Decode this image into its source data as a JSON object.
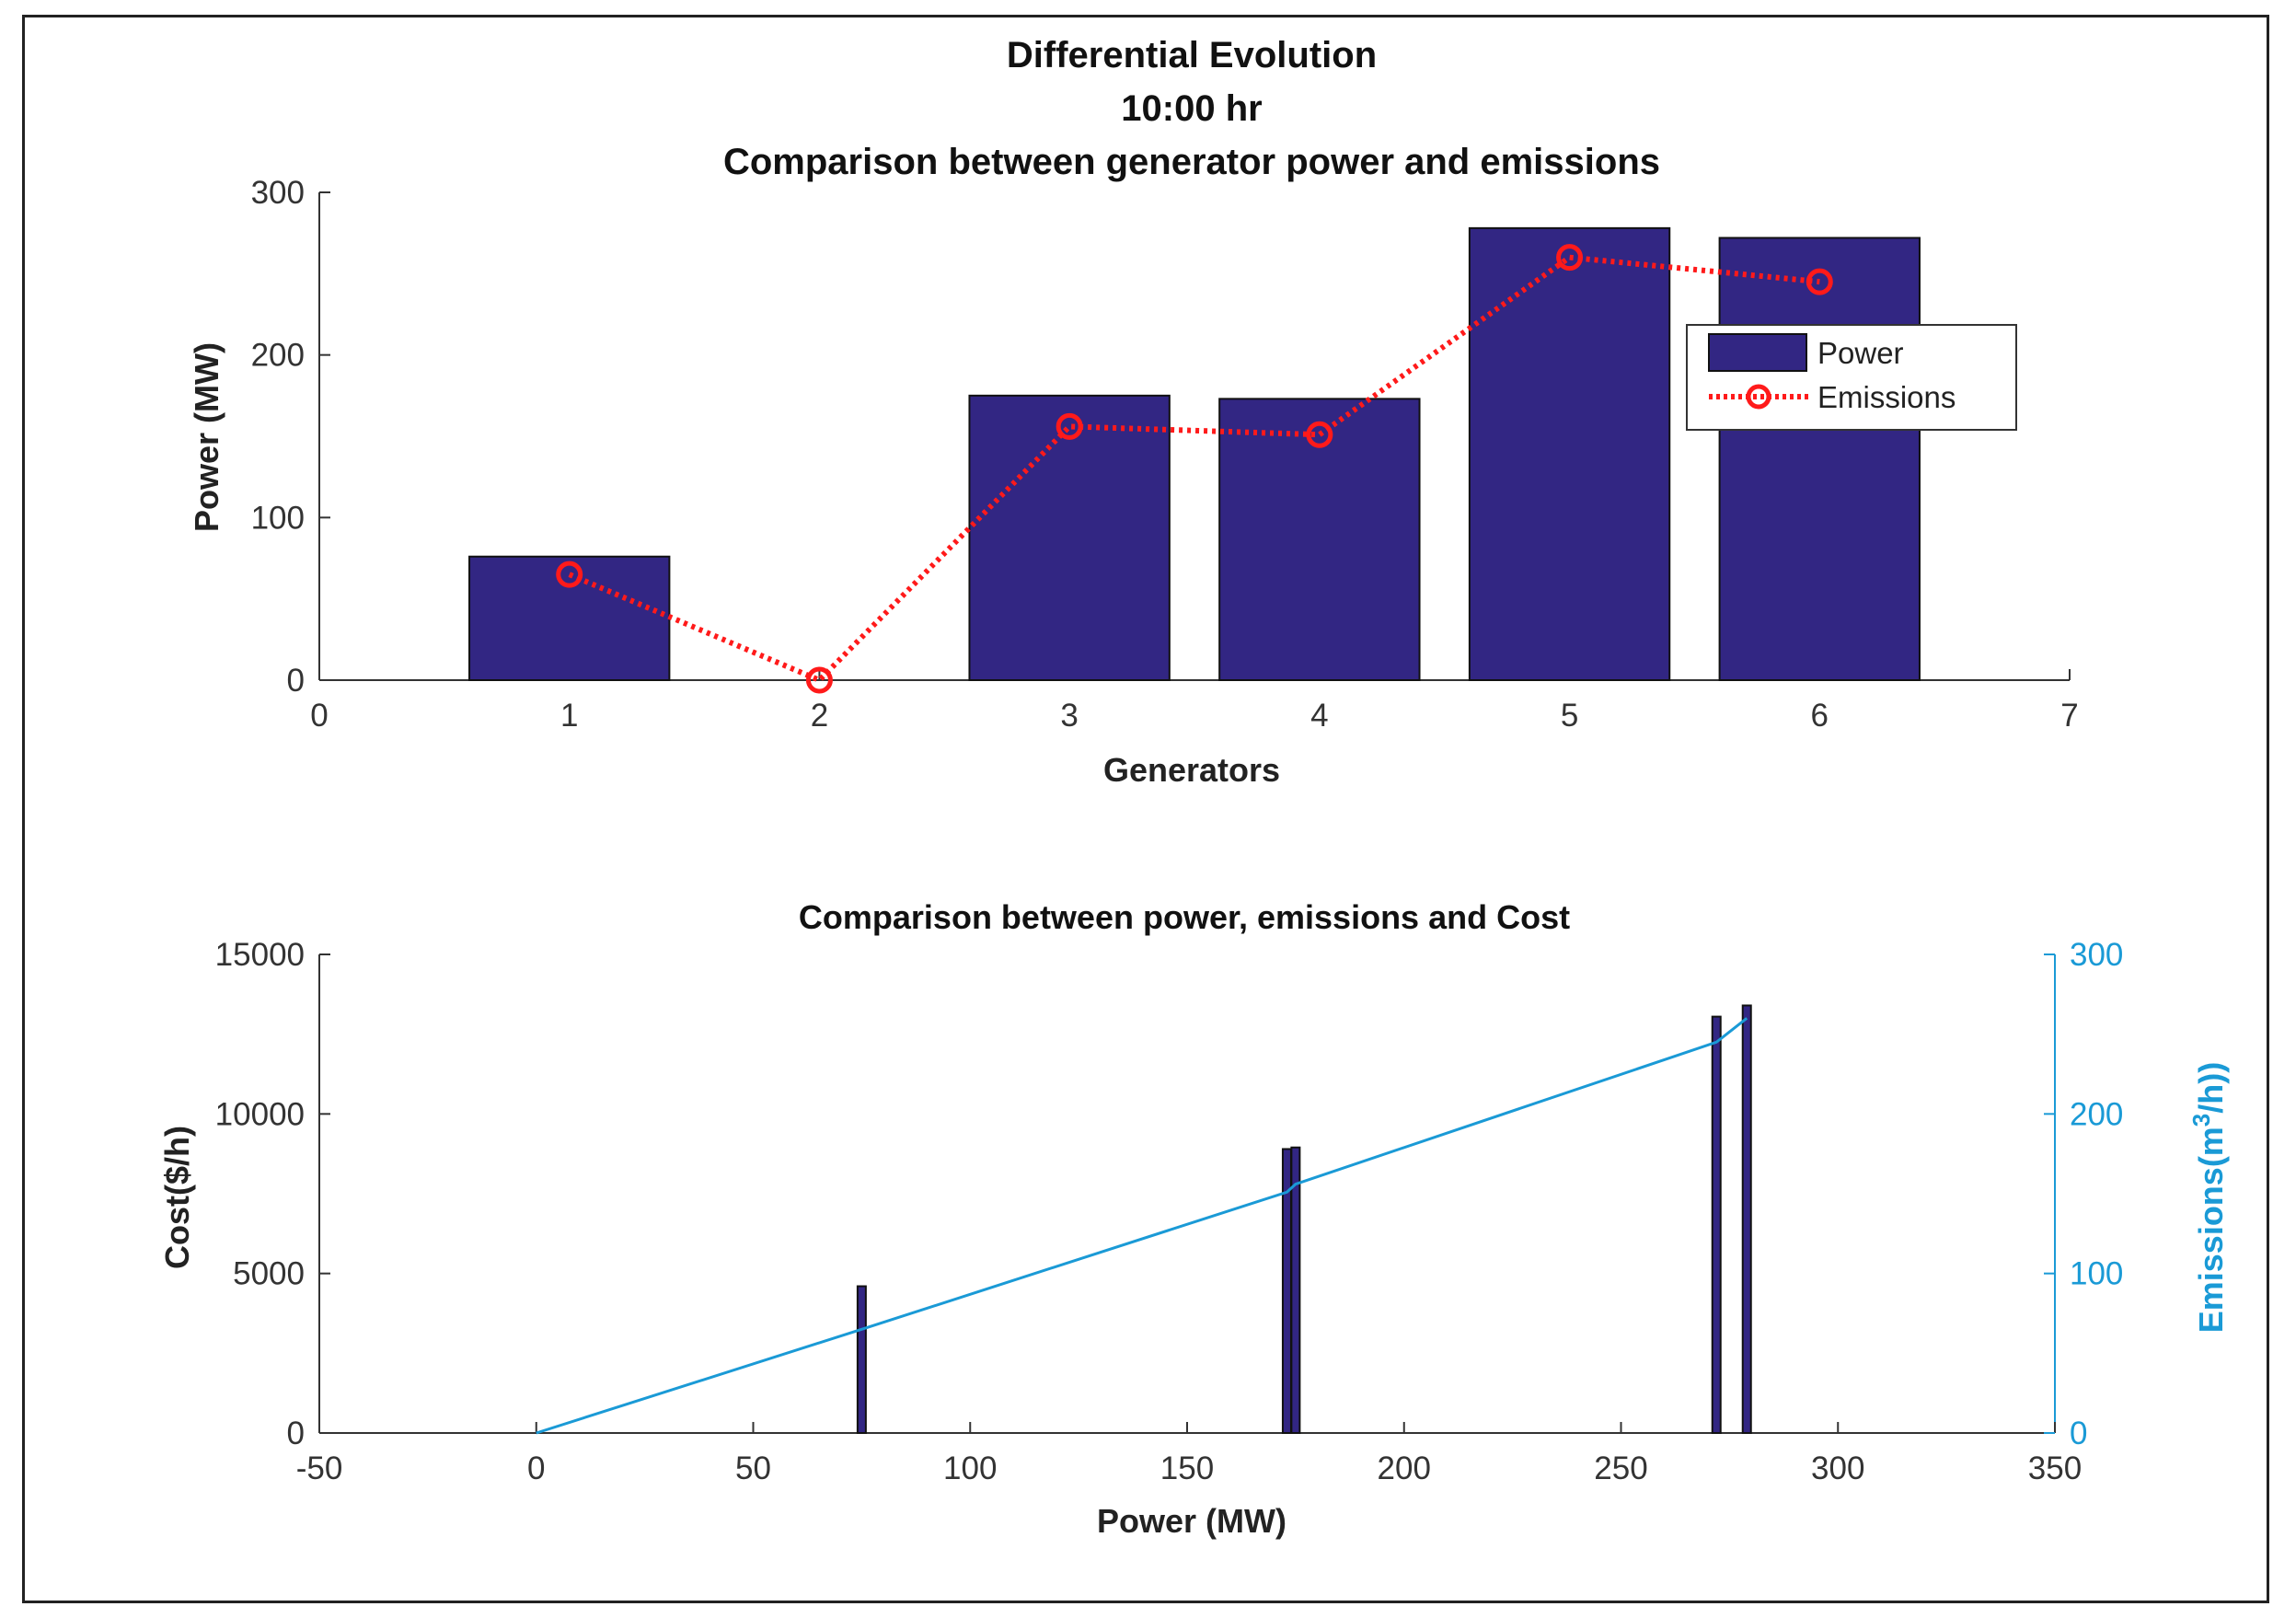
{
  "chart_data": [
    {
      "type": "bar",
      "title": [
        "Differential Evolution",
        "10:00 hr",
        "Comparison between generator power and emissions"
      ],
      "xlabel": "Generators",
      "ylabel": "Power (MW)",
      "xlim": [
        0,
        7
      ],
      "ylim": [
        0,
        300
      ],
      "xticks": [
        0,
        1,
        2,
        3,
        4,
        5,
        6,
        7
      ],
      "yticks": [
        0,
        100,
        200,
        300
      ],
      "categories": [
        1,
        2,
        3,
        4,
        5,
        6
      ],
      "series": [
        {
          "name": "Power",
          "kind": "bar",
          "color": "#322683",
          "values": [
            76,
            0,
            175,
            173,
            278,
            272
          ]
        },
        {
          "name": "Emissions",
          "kind": "line",
          "style": "dotted-circle-markers",
          "color": "#ff1a1a",
          "values": [
            65,
            0,
            156,
            151,
            260,
            245
          ]
        }
      ],
      "legend": {
        "position": "top-right",
        "entries": [
          "Power",
          "Emissions"
        ]
      }
    },
    {
      "type": "bar",
      "title": "Comparison between power, emissions and Cost",
      "xlabel": "Power (MW)",
      "ylabel_left": "Cost($/h)",
      "ylabel_right_prefix": "Emissions(m",
      "ylabel_right_sup": "3",
      "ylabel_right_suffix": "/h))",
      "xlim": [
        -50,
        350
      ],
      "ylim_left": [
        0,
        15000
      ],
      "ylim_right": [
        0,
        300
      ],
      "xticks": [
        -50,
        0,
        50,
        100,
        150,
        200,
        250,
        300,
        350
      ],
      "yticks_left": [
        0,
        5000,
        10000,
        15000
      ],
      "yticks_right": [
        0,
        100,
        200,
        300
      ],
      "bar_color": "#322683",
      "line_color": "#1a9ad6",
      "cost_bars": [
        {
          "power": 0,
          "cost": 0
        },
        {
          "power": 75,
          "cost": 4600
        },
        {
          "power": 173,
          "cost": 8900
        },
        {
          "power": 175,
          "cost": 8950
        },
        {
          "power": 272,
          "cost": 13050
        },
        {
          "power": 279,
          "cost": 13400
        }
      ],
      "emission_line": {
        "power": [
          0,
          75,
          173,
          175,
          272,
          279
        ],
        "emissions": [
          0,
          65,
          151,
          156,
          245,
          260
        ]
      }
    }
  ]
}
